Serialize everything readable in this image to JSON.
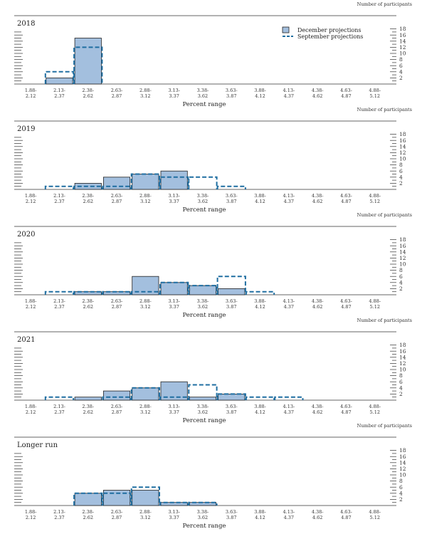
{
  "colors": {
    "december_fill": "#a3bfde",
    "december_edge": "#222222",
    "september_line": "#1f6ea1",
    "axis": "#333333"
  },
  "legend": {
    "december": "December projections",
    "september": "September projections"
  },
  "chart_data": [
    {
      "type": "bar",
      "title": "2018",
      "ylabel": "Number of participants",
      "xlabel": "Percent range",
      "categories": [
        "1.88-2.12",
        "2.13-2.37",
        "2.38-2.62",
        "2.63-2.87",
        "2.88-3.12",
        "3.13-3.37",
        "3.38-3.62",
        "3.63-3.87",
        "3.88-4.12",
        "4.13-4.37",
        "4.38-4.62",
        "4.63-4.87",
        "4.88-5.12"
      ],
      "series": [
        {
          "name": "December projections",
          "values": [
            0,
            2,
            15,
            0,
            0,
            0,
            0,
            0,
            0,
            0,
            0,
            0,
            0
          ]
        },
        {
          "name": "September projections",
          "values": [
            0,
            4,
            12,
            0,
            0,
            0,
            0,
            0,
            0,
            0,
            0,
            0,
            0
          ]
        }
      ],
      "yticks": [
        2,
        4,
        6,
        8,
        10,
        12,
        14,
        16,
        18
      ],
      "ylim": [
        0,
        18
      ],
      "legend": "top-right"
    },
    {
      "type": "bar",
      "title": "2019",
      "ylabel": "Number of participants",
      "xlabel": "Percent range",
      "categories": [
        "1.88-2.12",
        "2.13-2.37",
        "2.38-2.62",
        "2.63-2.87",
        "2.88-3.12",
        "3.13-3.37",
        "3.38-3.62",
        "3.63-3.87",
        "3.88-4.12",
        "4.13-4.37",
        "4.38-4.62",
        "4.63-4.87",
        "4.88-5.12"
      ],
      "series": [
        {
          "name": "December projections",
          "values": [
            0,
            0,
            2,
            4,
            5,
            6,
            0,
            0,
            0,
            0,
            0,
            0,
            0
          ]
        },
        {
          "name": "September projections",
          "values": [
            0,
            1,
            1,
            1,
            5,
            4,
            4,
            1,
            0,
            0,
            0,
            0,
            0
          ]
        }
      ],
      "yticks": [
        2,
        4,
        6,
        8,
        10,
        12,
        14,
        16,
        18
      ],
      "ylim": [
        0,
        18
      ]
    },
    {
      "type": "bar",
      "title": "2020",
      "ylabel": "Number of participants",
      "xlabel": "Percent range",
      "categories": [
        "1.88-2.12",
        "2.13-2.37",
        "2.38-2.62",
        "2.63-2.87",
        "2.88-3.12",
        "3.13-3.37",
        "3.38-3.62",
        "3.63-3.87",
        "3.88-4.12",
        "4.13-4.37",
        "4.38-4.62",
        "4.63-4.87",
        "4.88-5.12"
      ],
      "series": [
        {
          "name": "December projections",
          "values": [
            0,
            0,
            1,
            1,
            6,
            4,
            3,
            2,
            0,
            0,
            0,
            0,
            0
          ]
        },
        {
          "name": "September projections",
          "values": [
            0,
            1,
            1,
            1,
            1,
            4,
            3,
            6,
            1,
            0,
            0,
            0,
            0
          ]
        }
      ],
      "yticks": [
        2,
        4,
        6,
        8,
        10,
        12,
        14,
        16,
        18
      ],
      "ylim": [
        0,
        18
      ]
    },
    {
      "type": "bar",
      "title": "2021",
      "ylabel": "Number of participants",
      "xlabel": "Percent range",
      "categories": [
        "1.88-2.12",
        "2.13-2.37",
        "2.38-2.62",
        "2.63-2.87",
        "2.88-3.12",
        "3.13-3.37",
        "3.38-3.62",
        "3.63-3.87",
        "3.88-4.12",
        "4.13-4.37",
        "4.38-4.62",
        "4.63-4.87",
        "4.88-5.12"
      ],
      "series": [
        {
          "name": "December projections",
          "values": [
            0,
            0,
            1,
            3,
            4,
            6,
            1,
            2,
            0,
            0,
            0,
            0,
            0
          ]
        },
        {
          "name": "September projections",
          "values": [
            0,
            1,
            0,
            1,
            4,
            1,
            5,
            2,
            1,
            1,
            0,
            0,
            0
          ]
        }
      ],
      "yticks": [
        2,
        4,
        6,
        8,
        10,
        12,
        14,
        16,
        18
      ],
      "ylim": [
        0,
        18
      ]
    },
    {
      "type": "bar",
      "title": "Longer run",
      "ylabel": "Number of participants",
      "xlabel": "Percent range",
      "categories": [
        "1.88-2.12",
        "2.13-2.37",
        "2.38-2.62",
        "2.63-2.87",
        "2.88-3.12",
        "3.13-3.37",
        "3.38-3.62",
        "3.63-3.87",
        "3.88-4.12",
        "4.13-4.37",
        "4.38-4.62",
        "4.63-4.87",
        "4.88-5.12"
      ],
      "series": [
        {
          "name": "December projections",
          "values": [
            0,
            0,
            4,
            5,
            5,
            1,
            1,
            0,
            0,
            0,
            0,
            0,
            0
          ]
        },
        {
          "name": "September projections",
          "values": [
            0,
            0,
            4,
            4,
            6,
            1,
            1,
            0,
            0,
            0,
            0,
            0,
            0
          ]
        }
      ],
      "yticks": [
        2,
        4,
        6,
        8,
        10,
        12,
        14,
        16,
        18
      ],
      "ylim": [
        0,
        18
      ]
    }
  ]
}
